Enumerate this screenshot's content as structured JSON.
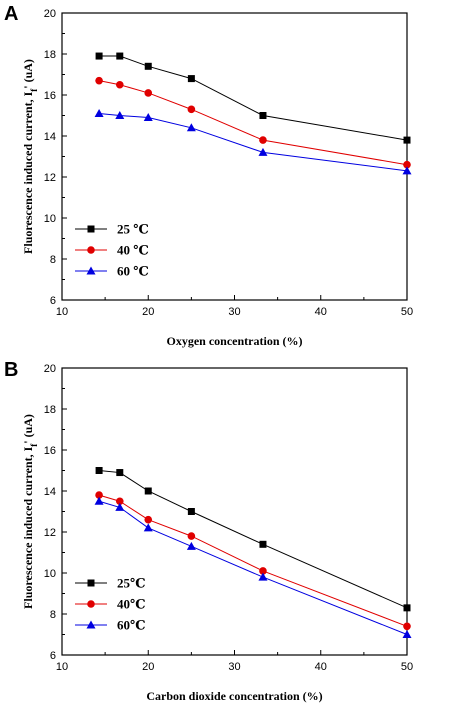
{
  "chart_data": [
    {
      "panel_label": "A",
      "type": "line",
      "xlabel": "Oxygen concentration  (%)",
      "ylabel_main": "Fluorescence induced current, I",
      "ylabel_sub": "f",
      "ylabel_end": "' (uA)",
      "xlim": [
        10,
        50
      ],
      "ylim": [
        6,
        20
      ],
      "xticks": [
        "10",
        "20",
        "30",
        "40",
        "50"
      ],
      "yticks": [
        "6",
        "8",
        "10",
        "12",
        "14",
        "16",
        "18",
        "20"
      ],
      "x": [
        14.3,
        16.7,
        20,
        25,
        33.3,
        50
      ],
      "grid": false,
      "legend_position": "lower-left",
      "series": [
        {
          "name": "25 ℃",
          "marker": "square",
          "color": "#000000",
          "values": [
            17.9,
            17.9,
            17.4,
            16.8,
            15.0,
            13.8
          ]
        },
        {
          "name": "40 ℃",
          "marker": "circle",
          "color": "#e00000",
          "values": [
            16.7,
            16.5,
            16.1,
            15.3,
            13.8,
            12.6
          ]
        },
        {
          "name": "60 ℃",
          "marker": "triangle",
          "color": "#0000e0",
          "values": [
            15.1,
            15.0,
            14.9,
            14.4,
            13.2,
            12.3
          ]
        }
      ]
    },
    {
      "panel_label": "B",
      "type": "line",
      "xlabel": "Carbon dioxide concentration  (%)",
      "ylabel_main": "Fluorescence induced current, I",
      "ylabel_sub": "f",
      "ylabel_end": "' (uA)",
      "xlim": [
        10,
        50
      ],
      "ylim": [
        6,
        20
      ],
      "xticks": [
        "10",
        "20",
        "30",
        "40",
        "50"
      ],
      "yticks": [
        "6",
        "8",
        "10",
        "12",
        "14",
        "16",
        "18",
        "20"
      ],
      "x": [
        14.3,
        16.7,
        20,
        25,
        33.3,
        50
      ],
      "grid": false,
      "legend_position": "lower-left",
      "series": [
        {
          "name": "25℃",
          "marker": "square",
          "color": "#000000",
          "values": [
            15.0,
            14.9,
            14.0,
            13.0,
            11.4,
            8.3
          ]
        },
        {
          "name": "40℃",
          "marker": "circle",
          "color": "#e00000",
          "values": [
            13.8,
            13.5,
            12.6,
            11.8,
            10.1,
            7.4
          ]
        },
        {
          "name": "60℃",
          "marker": "triangle",
          "color": "#0000e0",
          "values": [
            13.5,
            13.2,
            12.2,
            11.3,
            9.8,
            7.0
          ]
        }
      ]
    }
  ]
}
